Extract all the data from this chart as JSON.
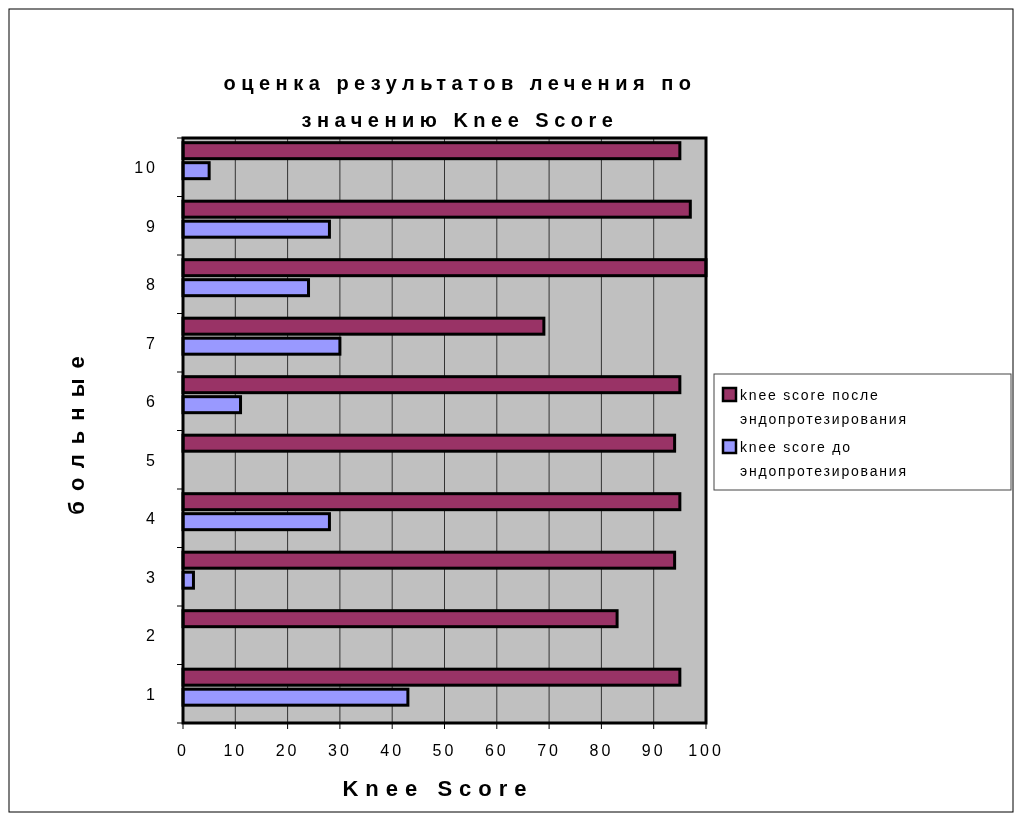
{
  "chart_data": {
    "type": "bar",
    "orientation": "horizontal",
    "title": "оценка результатов лечения по значению Knee Score",
    "xlabel": "Knee Score",
    "ylabel": "больные",
    "categories": [
      "10",
      "9",
      "8",
      "7",
      "6",
      "5",
      "4",
      "3",
      "2",
      "1"
    ],
    "series": [
      {
        "name": "knee score после эндопротезирования",
        "color": "#993366",
        "values": [
          95,
          97,
          100,
          69,
          95,
          94,
          95,
          94,
          83,
          95
        ]
      },
      {
        "name": "knee score до эндопротезирования",
        "color": "#9999ff",
        "values": [
          5,
          28,
          24,
          30,
          11,
          null,
          28,
          2,
          null,
          43
        ]
      }
    ],
    "xlim": [
      0,
      100
    ],
    "xticks": [
      0,
      10,
      20,
      30,
      40,
      50,
      60,
      70,
      80,
      90,
      100
    ],
    "grid": "x",
    "legend": "right"
  }
}
